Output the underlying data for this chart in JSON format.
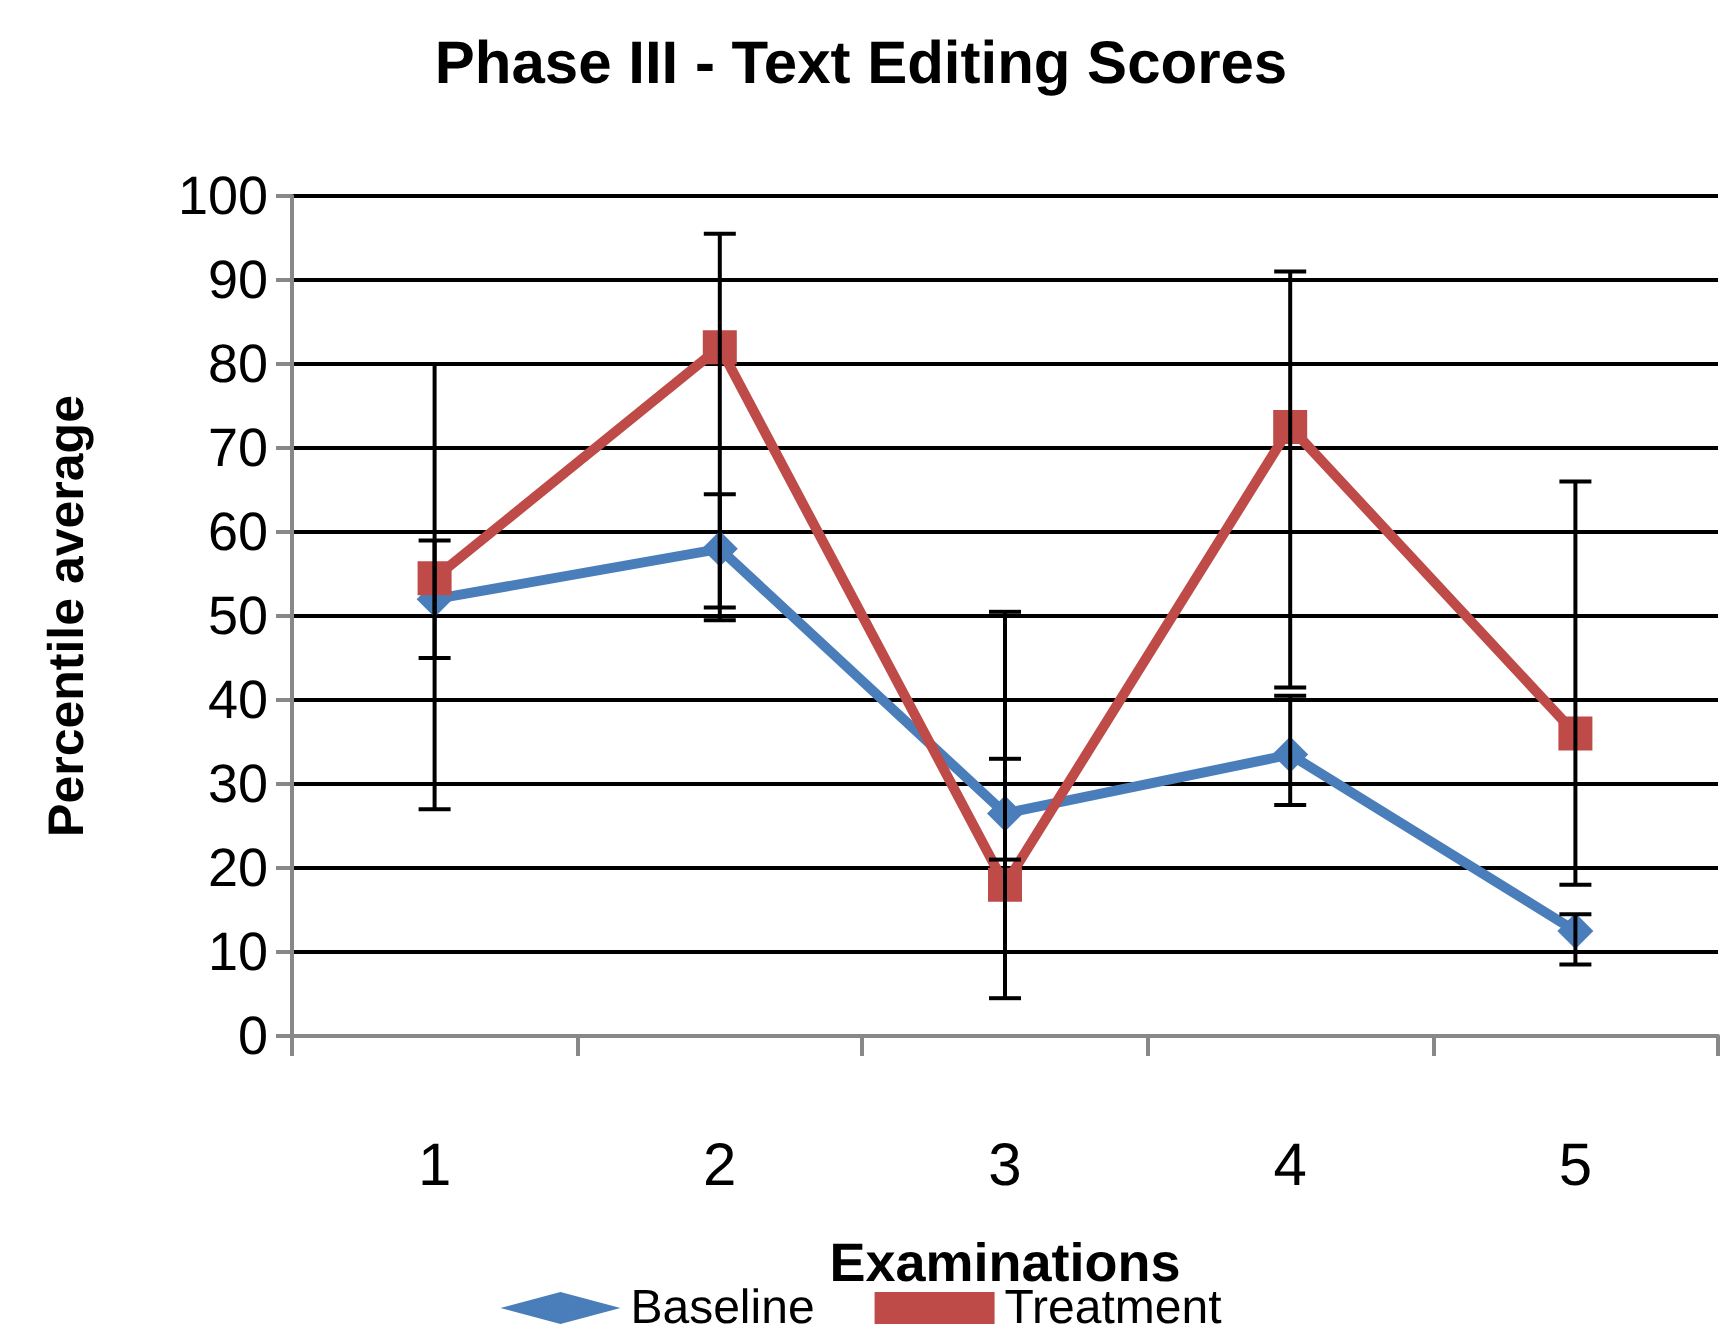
{
  "chart_data": {
    "type": "line",
    "title": "Phase III - Text Editing Scores",
    "xlabel": "Examinations",
    "ylabel": "Percentile average",
    "categories": [
      "1",
      "2",
      "3",
      "4",
      "5"
    ],
    "series": [
      {
        "name": "Baseline",
        "color": "#4a7ebb",
        "marker": "diamond",
        "values": [
          52,
          58,
          26.5,
          33.5,
          12.5
        ],
        "errors": [
          [
            45,
            59
          ],
          [
            51,
            64.5
          ],
          [
            21,
            33
          ],
          [
            27.5,
            40.5
          ],
          [
            8.5,
            14.5
          ]
        ]
      },
      {
        "name": "Treatment",
        "color": "#be4b48",
        "marker": "square",
        "values": [
          54.5,
          82,
          18,
          72.5,
          36
        ],
        "errors": [
          [
            27,
            80
          ],
          [
            49.5,
            95.5
          ],
          [
            4.5,
            50.5
          ],
          [
            41.5,
            91
          ],
          [
            18,
            66
          ]
        ]
      }
    ],
    "ylim": [
      0,
      100
    ],
    "yticks": [
      0,
      10,
      20,
      30,
      40,
      50,
      60,
      70,
      80,
      90,
      100
    ],
    "grid": "y",
    "legend": "bottom",
    "line_style": "solid"
  }
}
